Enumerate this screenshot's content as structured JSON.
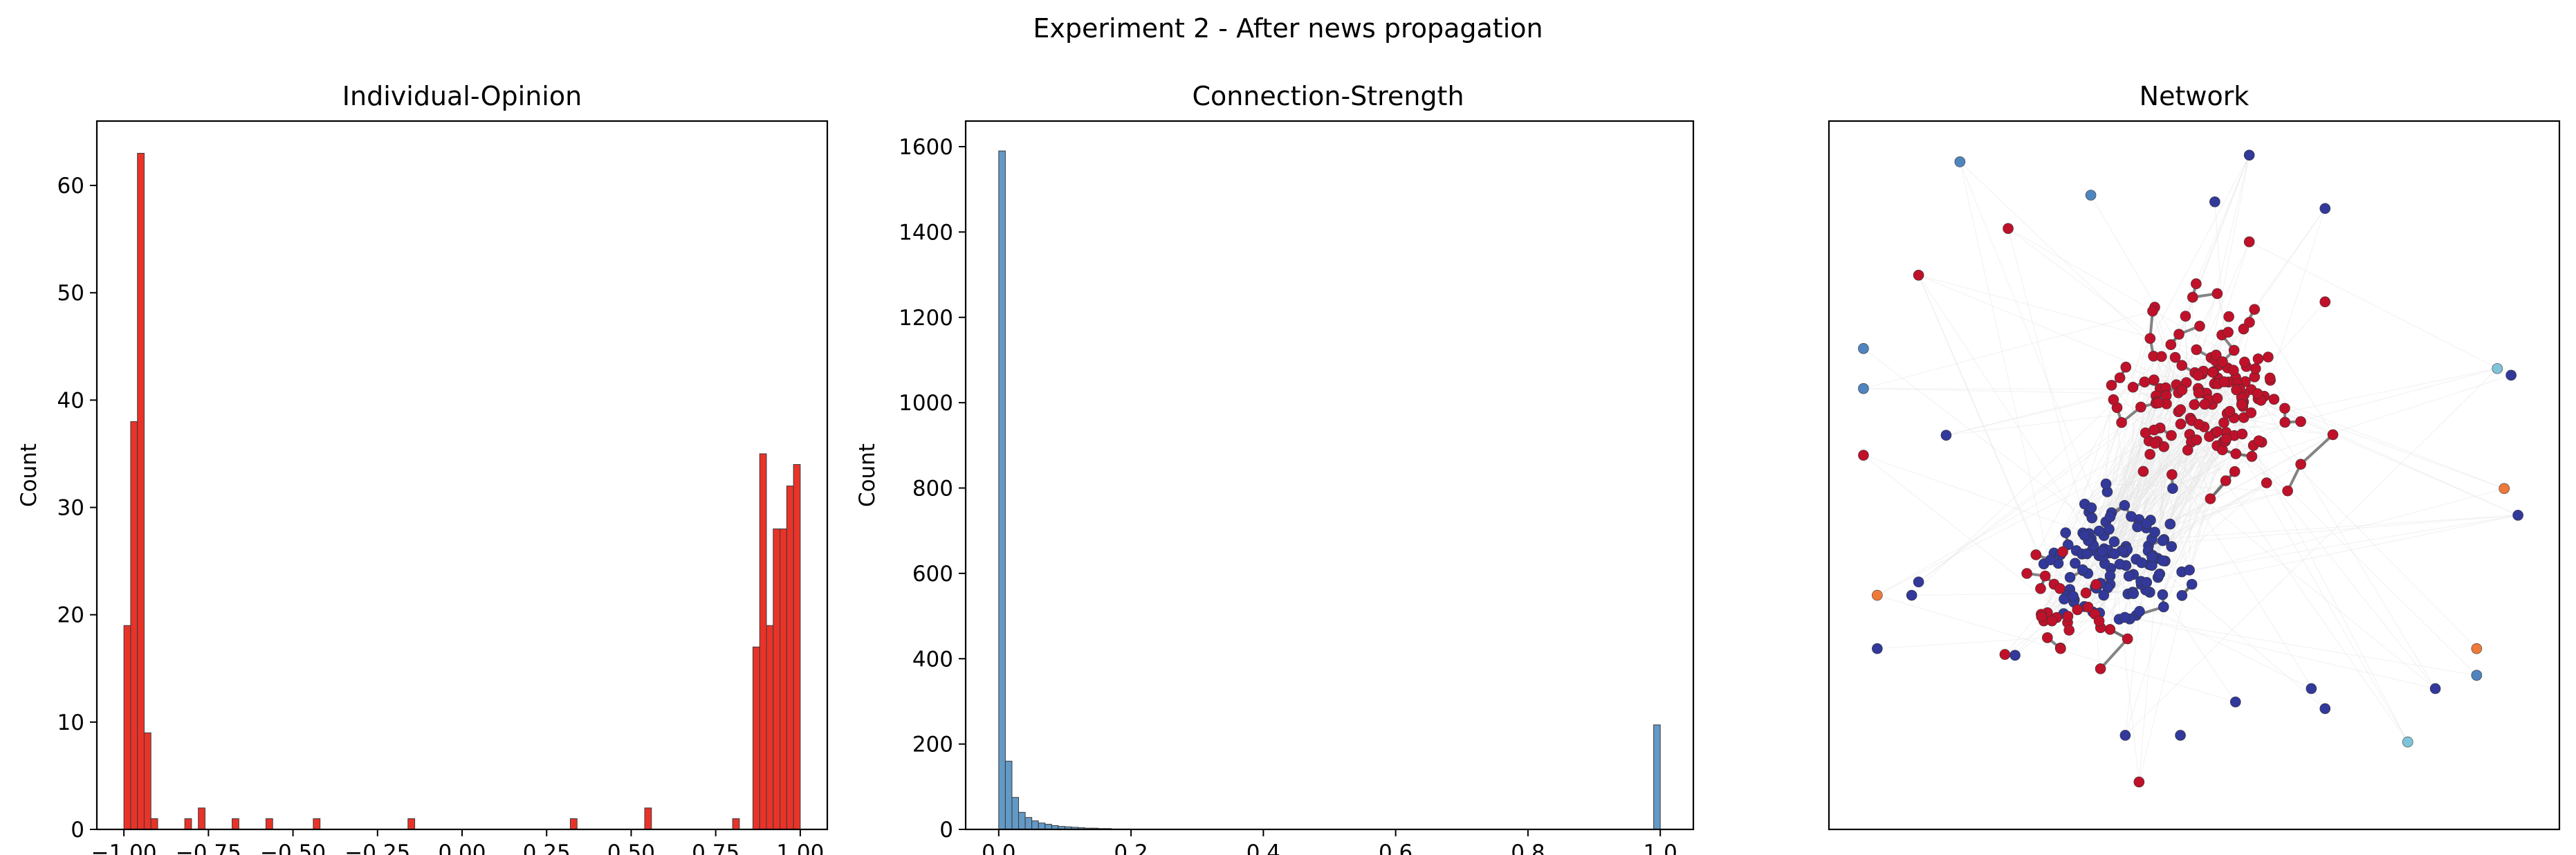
{
  "figure": {
    "title": "Experiment 2 - After news propagation"
  },
  "chart_data": [
    {
      "type": "bar",
      "title": "Individual-Opinion",
      "xlabel": "",
      "ylabel": "Count",
      "xlim": [
        -1.08,
        1.08
      ],
      "ylim": [
        0,
        66
      ],
      "xticks": [
        -1.0,
        -0.75,
        -0.5,
        -0.25,
        0.0,
        0.25,
        0.5,
        0.75,
        1.0
      ],
      "xtick_labels": [
        "−1.00",
        "−0.75",
        "−0.50",
        "−0.25",
        "0.00",
        "0.25",
        "0.50",
        "0.75",
        "1.00"
      ],
      "yticks": [
        0,
        10,
        20,
        30,
        40,
        50,
        60
      ],
      "bin_width": 0.02,
      "color": "#e8281e",
      "bins": [
        {
          "x": -0.99,
          "count": 19
        },
        {
          "x": -0.97,
          "count": 38
        },
        {
          "x": -0.95,
          "count": 63
        },
        {
          "x": -0.93,
          "count": 9
        },
        {
          "x": -0.91,
          "count": 1
        },
        {
          "x": -0.81,
          "count": 1
        },
        {
          "x": -0.77,
          "count": 2
        },
        {
          "x": -0.67,
          "count": 1
        },
        {
          "x": -0.57,
          "count": 1
        },
        {
          "x": -0.43,
          "count": 1
        },
        {
          "x": -0.15,
          "count": 1
        },
        {
          "x": 0.33,
          "count": 1
        },
        {
          "x": 0.55,
          "count": 2
        },
        {
          "x": 0.81,
          "count": 1
        },
        {
          "x": 0.87,
          "count": 17
        },
        {
          "x": 0.89,
          "count": 35
        },
        {
          "x": 0.91,
          "count": 19
        },
        {
          "x": 0.93,
          "count": 28
        },
        {
          "x": 0.95,
          "count": 28
        },
        {
          "x": 0.97,
          "count": 32
        },
        {
          "x": 0.99,
          "count": 34
        }
      ]
    },
    {
      "type": "bar",
      "title": "Connection-Strength",
      "xlabel": "",
      "ylabel": "Count",
      "xlim": [
        -0.05,
        1.05
      ],
      "ylim": [
        0,
        1660
      ],
      "xticks": [
        0.0,
        0.2,
        0.4,
        0.6,
        0.8,
        1.0
      ],
      "xtick_labels": [
        "0.0",
        "0.2",
        "0.4",
        "0.6",
        "0.8",
        "1.0"
      ],
      "yticks": [
        0,
        200,
        400,
        600,
        800,
        1000,
        1200,
        1400,
        1600
      ],
      "bin_width": 0.01,
      "color": "#5b93c2",
      "bins": [
        {
          "x": 0.005,
          "count": 1590
        },
        {
          "x": 0.015,
          "count": 160
        },
        {
          "x": 0.025,
          "count": 75
        },
        {
          "x": 0.035,
          "count": 40
        },
        {
          "x": 0.045,
          "count": 28
        },
        {
          "x": 0.055,
          "count": 20
        },
        {
          "x": 0.065,
          "count": 15
        },
        {
          "x": 0.075,
          "count": 12
        },
        {
          "x": 0.085,
          "count": 9
        },
        {
          "x": 0.095,
          "count": 7
        },
        {
          "x": 0.105,
          "count": 6
        },
        {
          "x": 0.115,
          "count": 5
        },
        {
          "x": 0.125,
          "count": 4
        },
        {
          "x": 0.135,
          "count": 3
        },
        {
          "x": 0.145,
          "count": 3
        },
        {
          "x": 0.155,
          "count": 2
        },
        {
          "x": 0.165,
          "count": 2
        },
        {
          "x": 0.175,
          "count": 1
        },
        {
          "x": 0.185,
          "count": 1
        },
        {
          "x": 0.195,
          "count": 1
        },
        {
          "x": 0.995,
          "count": 245
        }
      ]
    },
    {
      "type": "scatter",
      "title": "Network",
      "axes": "none",
      "note_colors": {
        "red": "#c0112a",
        "blue": "#32399a",
        "light_blue": "#4f84bf",
        "cyan": "#7fc4d8",
        "orange": "#ee7a3a",
        "edge_dark": "#6f6f6f",
        "edge_light": "#e6e6e6"
      },
      "nodes": [
        {
          "x": 0.16,
          "y": 0.97,
          "c": "#4f84bf"
        },
        {
          "x": 0.58,
          "y": 0.98,
          "c": "#32399a"
        },
        {
          "x": 0.35,
          "y": 0.92,
          "c": "#4f84bf"
        },
        {
          "x": 0.53,
          "y": 0.91,
          "c": "#32399a"
        },
        {
          "x": 0.69,
          "y": 0.9,
          "c": "#32399a"
        },
        {
          "x": 0.23,
          "y": 0.87,
          "c": "#c0112a"
        },
        {
          "x": 0.1,
          "y": 0.8,
          "c": "#c0112a"
        },
        {
          "x": 0.69,
          "y": 0.76,
          "c": "#c0112a"
        },
        {
          "x": 0.02,
          "y": 0.69,
          "c": "#4f84bf"
        },
        {
          "x": 0.01,
          "y": 0.63,
          "c": "#4f84bf"
        },
        {
          "x": 0.94,
          "y": 0.66,
          "c": "#7fc4d8"
        },
        {
          "x": 0.96,
          "y": 0.65,
          "c": "#32399a"
        },
        {
          "x": 0.01,
          "y": 0.53,
          "c": "#c0112a"
        },
        {
          "x": 0.14,
          "y": 0.56,
          "c": "#32399a"
        },
        {
          "x": 0.95,
          "y": 0.48,
          "c": "#ee7a3a"
        },
        {
          "x": 0.97,
          "y": 0.44,
          "c": "#32399a"
        },
        {
          "x": 0.04,
          "y": 0.32,
          "c": "#ee7a3a"
        },
        {
          "x": 0.09,
          "y": 0.32,
          "c": "#32399a"
        },
        {
          "x": 0.1,
          "y": 0.34,
          "c": "#32399a"
        },
        {
          "x": 0.04,
          "y": 0.24,
          "c": "#32399a"
        },
        {
          "x": 0.91,
          "y": 0.24,
          "c": "#ee7a3a"
        },
        {
          "x": 0.91,
          "y": 0.2,
          "c": "#4f84bf"
        },
        {
          "x": 0.85,
          "y": 0.18,
          "c": "#32399a"
        },
        {
          "x": 0.81,
          "y": 0.1,
          "c": "#7fc4d8"
        },
        {
          "x": 0.4,
          "y": 0.11,
          "c": "#32399a"
        },
        {
          "x": 0.48,
          "y": 0.11,
          "c": "#32399a"
        },
        {
          "x": 0.42,
          "y": 0.04,
          "c": "#c0112a"
        },
        {
          "x": 0.56,
          "y": 0.16,
          "c": "#32399a"
        },
        {
          "x": 0.67,
          "y": 0.18,
          "c": "#32399a"
        },
        {
          "x": 0.69,
          "y": 0.15,
          "c": "#32399a"
        },
        {
          "x": 0.24,
          "y": 0.23,
          "c": "#32399a"
        },
        {
          "x": 0.58,
          "y": 0.85,
          "c": "#c0112a"
        }
      ]
    }
  ]
}
